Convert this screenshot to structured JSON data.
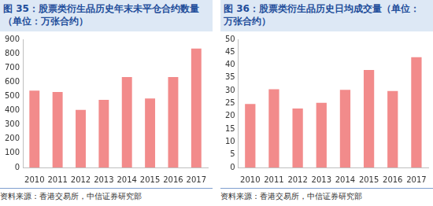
{
  "chart_data": [
    {
      "type": "bar",
      "title": [
        "图 35：股票类衍生品历史年末未平仓合约数量",
        "（单位：万张合约）"
      ],
      "source": "资料来源：香港交易所，中信证券研究部",
      "categories": [
        "2010",
        "2011",
        "2012",
        "2013",
        "2014",
        "2015",
        "2016",
        "2017"
      ],
      "values": [
        540,
        530,
        405,
        475,
        635,
        485,
        635,
        835
      ],
      "color": "#f28b8b",
      "ylim": [
        0,
        900
      ],
      "yticks": [
        0,
        100,
        200,
        300,
        400,
        500,
        600,
        700,
        800,
        900
      ],
      "grid": false
    },
    {
      "type": "bar",
      "title": [
        "图 36：股票类衍生品历史日均成交量（单位：",
        "万张合约）"
      ],
      "source": "资料来源：香港交易所，中信证券研究部",
      "categories": [
        "2010",
        "2011",
        "2012",
        "2013",
        "2014",
        "2015",
        "2016",
        "2017"
      ],
      "values": [
        24.8,
        30.5,
        23,
        25.2,
        30.3,
        38,
        29.8,
        43
      ],
      "color": "#f28b8b",
      "ylim": [
        0,
        50
      ],
      "yticks": [
        0,
        5,
        10,
        15,
        20,
        25,
        30,
        35,
        40,
        45,
        50
      ],
      "grid": false
    }
  ]
}
